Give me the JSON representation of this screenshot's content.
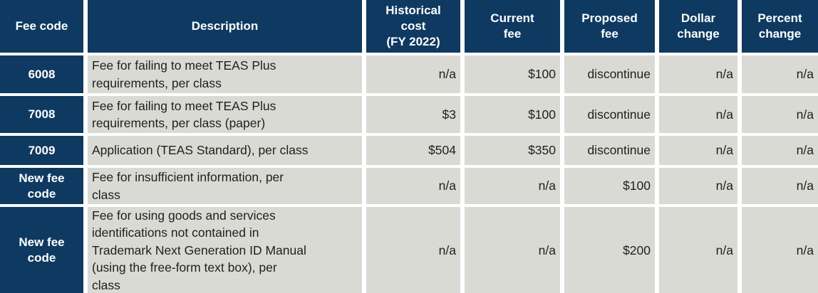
{
  "colors": {
    "header_bg": "#0E3A62",
    "row_bg": "#DADAD5",
    "header_text": "#FFFFFF",
    "body_text": "#1F1F1F",
    "gap_color": "#FFFFFF"
  },
  "table": {
    "columns": [
      {
        "label": "Fee code"
      },
      {
        "label": "Description"
      },
      {
        "label": "Historical\ncost\n(FY 2022)"
      },
      {
        "label": "Current\nfee"
      },
      {
        "label": "Proposed\nfee"
      },
      {
        "label": "Dollar\nchange"
      },
      {
        "label": "Percent\nchange"
      }
    ],
    "rows": [
      {
        "fee_code": "6008",
        "description": "Fee for failing to meet TEAS Plus\nrequirements, per class",
        "historical_cost": "n/a",
        "current_fee": "$100",
        "proposed_fee": "discontinue",
        "dollar_change": "n/a",
        "percent_change": "n/a"
      },
      {
        "fee_code": "7008",
        "description": "Fee for failing to meet TEAS Plus\nrequirements, per class (paper)",
        "historical_cost": "$3",
        "current_fee": "$100",
        "proposed_fee": "discontinue",
        "dollar_change": "n/a",
        "percent_change": "n/a"
      },
      {
        "fee_code": "7009",
        "description": "Application (TEAS Standard), per class",
        "historical_cost": "$504",
        "current_fee": "$350",
        "proposed_fee": "discontinue",
        "dollar_change": "n/a",
        "percent_change": "n/a"
      },
      {
        "fee_code": "New fee\ncode",
        "description": "Fee for insufficient information, per\nclass",
        "historical_cost": "n/a",
        "current_fee": "n/a",
        "proposed_fee": "$100",
        "dollar_change": "n/a",
        "percent_change": "n/a"
      },
      {
        "fee_code": "New fee\ncode",
        "description": "Fee for using goods and services\nidentifications not contained in\nTrademark Next Generation ID Manual\n(using the free-form text box), per\nclass",
        "historical_cost": "n/a",
        "current_fee": "n/a",
        "proposed_fee": "$200",
        "dollar_change": "n/a",
        "percent_change": "n/a"
      }
    ]
  }
}
